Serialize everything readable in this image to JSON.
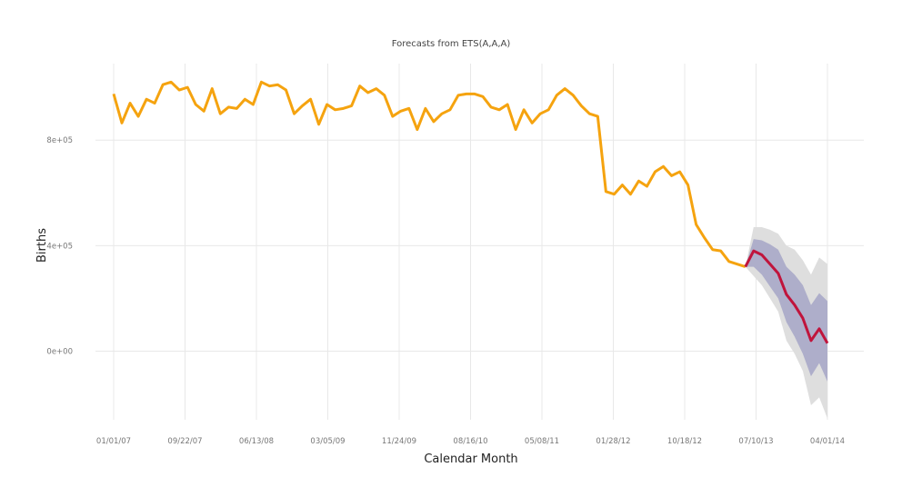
{
  "chart_data": {
    "type": "line",
    "title": "Forecasts from ETS(A,A,A)",
    "xlabel": "Calendar Month",
    "ylabel": "Births",
    "x_tick_labels": [
      "01/01/07",
      "09/22/07",
      "06/13/08",
      "03/05/09",
      "11/24/09",
      "08/16/10",
      "05/08/11",
      "01/28/12",
      "10/18/12",
      "07/10/13",
      "04/01/14"
    ],
    "y_tick_labels": [
      "0e+00",
      "4e+05",
      "8e+05"
    ],
    "y_tick_values": [
      0,
      400000,
      800000
    ],
    "ylim": [
      -260000,
      1090000
    ],
    "grid": true,
    "legend": "none",
    "colors": {
      "history": "#f5a30f",
      "forecast": "#c0143c",
      "band80": "#a8a8c8",
      "band95": "#dedede",
      "grid": "#e8e8e8"
    },
    "history_start_month": "2007-01",
    "history": [
      975000,
      865000,
      940000,
      890000,
      955000,
      940000,
      1010000,
      1020000,
      990000,
      1000000,
      935000,
      910000,
      995000,
      900000,
      925000,
      920000,
      955000,
      935000,
      1020000,
      1005000,
      1010000,
      990000,
      900000,
      930000,
      955000,
      860000,
      935000,
      915000,
      920000,
      930000,
      1005000,
      980000,
      995000,
      970000,
      890000,
      910000,
      920000,
      840000,
      920000,
      870000,
      900000,
      915000,
      970000,
      975000,
      975000,
      965000,
      925000,
      915000,
      935000,
      840000,
      915000,
      865000,
      900000,
      915000,
      970000,
      995000,
      970000,
      930000,
      900000,
      890000,
      605000,
      595000,
      630000,
      595000,
      645000,
      625000,
      680000,
      700000,
      665000,
      680000,
      630000,
      480000,
      430000,
      385000,
      380000,
      340000,
      330000,
      320000
    ],
    "forecast_start_month": "2013-06",
    "forecast": {
      "mean": [
        320000,
        380000,
        365000,
        330000,
        295000,
        215000,
        175000,
        125000,
        40000,
        85000,
        30000
      ],
      "lo80": [
        320000,
        320000,
        290000,
        245000,
        200000,
        110000,
        55000,
        -10000,
        -95000,
        -45000,
        -115000
      ],
      "hi80": [
        320000,
        425000,
        420000,
        405000,
        385000,
        320000,
        290000,
        250000,
        175000,
        220000,
        190000
      ],
      "lo95": [
        320000,
        285000,
        250000,
        200000,
        150000,
        40000,
        -10000,
        -75000,
        -205000,
        -175000,
        -255000
      ],
      "hi95": [
        320000,
        470000,
        470000,
        460000,
        445000,
        400000,
        385000,
        345000,
        290000,
        355000,
        330000
      ]
    }
  }
}
